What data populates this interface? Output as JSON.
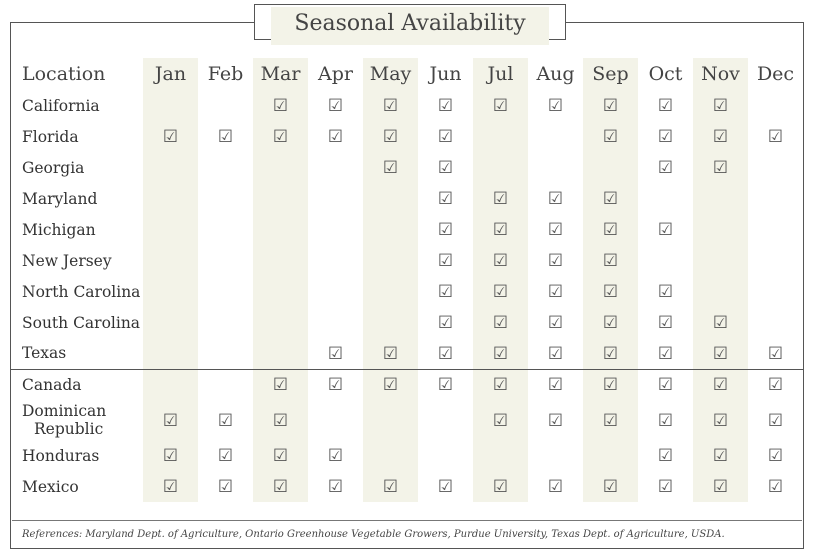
{
  "title": "Seasonal Availability",
  "location_header": "Location",
  "months": [
    "Jan",
    "Feb",
    "Mar",
    "Apr",
    "May",
    "Jun",
    "Jul",
    "Aug",
    "Sep",
    "Oct",
    "Nov",
    "Dec"
  ],
  "shaded_month_indices": [
    0,
    2,
    4,
    6,
    8,
    10
  ],
  "check_glyph": "☑",
  "rows": [
    {
      "location": "California",
      "avail": [
        0,
        0,
        1,
        1,
        1,
        1,
        1,
        1,
        1,
        1,
        1,
        0
      ]
    },
    {
      "location": "Florida",
      "avail": [
        1,
        1,
        1,
        1,
        1,
        1,
        0,
        0,
        1,
        1,
        1,
        1
      ]
    },
    {
      "location": "Georgia",
      "avail": [
        0,
        0,
        0,
        0,
        1,
        1,
        0,
        0,
        0,
        1,
        1,
        0
      ]
    },
    {
      "location": "Maryland",
      "avail": [
        0,
        0,
        0,
        0,
        0,
        1,
        1,
        1,
        1,
        0,
        0,
        0
      ]
    },
    {
      "location": "Michigan",
      "avail": [
        0,
        0,
        0,
        0,
        0,
        1,
        1,
        1,
        1,
        1,
        0,
        0
      ]
    },
    {
      "location": "New Jersey",
      "avail": [
        0,
        0,
        0,
        0,
        0,
        1,
        1,
        1,
        1,
        0,
        0,
        0
      ]
    },
    {
      "location": "North Carolina",
      "avail": [
        0,
        0,
        0,
        0,
        0,
        1,
        1,
        1,
        1,
        1,
        0,
        0
      ]
    },
    {
      "location": "South Carolina",
      "avail": [
        0,
        0,
        0,
        0,
        0,
        1,
        1,
        1,
        1,
        1,
        1,
        0
      ]
    },
    {
      "location": "Texas",
      "avail": [
        0,
        0,
        0,
        1,
        1,
        1,
        1,
        1,
        1,
        1,
        1,
        1
      ]
    },
    {
      "location": "Canada",
      "avail": [
        0,
        0,
        1,
        1,
        1,
        1,
        1,
        1,
        1,
        1,
        1,
        1
      ],
      "separator": true
    },
    {
      "location": "Dominican Republic",
      "location_lines": [
        "Dominican",
        "Republic"
      ],
      "avail": [
        1,
        1,
        1,
        0,
        0,
        0,
        1,
        1,
        1,
        1,
        1,
        1
      ]
    },
    {
      "location": "Honduras",
      "avail": [
        1,
        1,
        1,
        1,
        0,
        0,
        0,
        0,
        0,
        1,
        1,
        1
      ]
    },
    {
      "location": "Mexico",
      "avail": [
        1,
        1,
        1,
        1,
        1,
        1,
        1,
        1,
        1,
        1,
        1,
        1
      ]
    }
  ],
  "references": "References: Maryland Dept. of Agriculture, Ontario Greenhouse Vegetable Growers, Purdue University, Texas Dept. of Agriculture, USDA."
}
